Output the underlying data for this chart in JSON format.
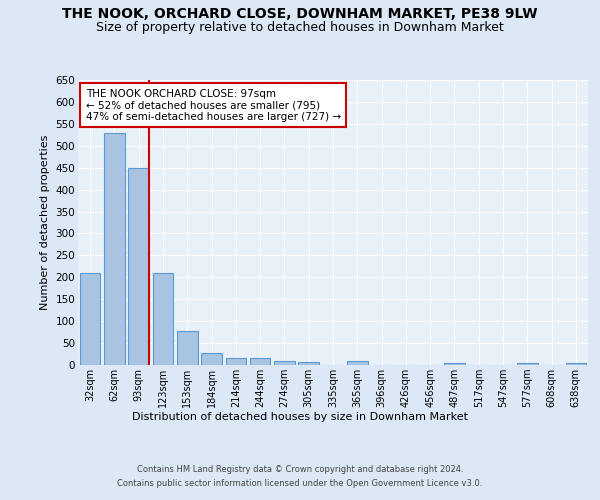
{
  "title": "THE NOOK, ORCHARD CLOSE, DOWNHAM MARKET, PE38 9LW",
  "subtitle": "Size of property relative to detached houses in Downham Market",
  "xlabel": "Distribution of detached houses by size in Downham Market",
  "ylabel": "Number of detached properties",
  "footer_line1": "Contains HM Land Registry data © Crown copyright and database right 2024.",
  "footer_line2": "Contains public sector information licensed under the Open Government Licence v3.0.",
  "categories": [
    "32sqm",
    "62sqm",
    "93sqm",
    "123sqm",
    "153sqm",
    "184sqm",
    "214sqm",
    "244sqm",
    "274sqm",
    "305sqm",
    "335sqm",
    "365sqm",
    "396sqm",
    "426sqm",
    "456sqm",
    "487sqm",
    "517sqm",
    "547sqm",
    "577sqm",
    "608sqm",
    "638sqm"
  ],
  "values": [
    210,
    530,
    450,
    210,
    78,
    27,
    17,
    15,
    10,
    7,
    0,
    8,
    0,
    0,
    0,
    5,
    0,
    0,
    5,
    0,
    5
  ],
  "bar_color": "#a8c4e0",
  "bar_edge_color": "#5b9bd5",
  "vline_x_index": 2,
  "vline_color": "#cc0000",
  "annotation_text": "THE NOOK ORCHARD CLOSE: 97sqm\n← 52% of detached houses are smaller (795)\n47% of semi-detached houses are larger (727) →",
  "annotation_box_color": "#cc0000",
  "annotation_bg_color": "#ffffff",
  "ylim": [
    0,
    650
  ],
  "yticks": [
    0,
    50,
    100,
    150,
    200,
    250,
    300,
    350,
    400,
    450,
    500,
    550,
    600,
    650
  ],
  "title_fontsize": 10,
  "subtitle_fontsize": 9,
  "bg_color": "#dce8f5",
  "axes_bg_color": "#e8f0f8",
  "grid_color": "#ffffff",
  "title_color": "#000000"
}
